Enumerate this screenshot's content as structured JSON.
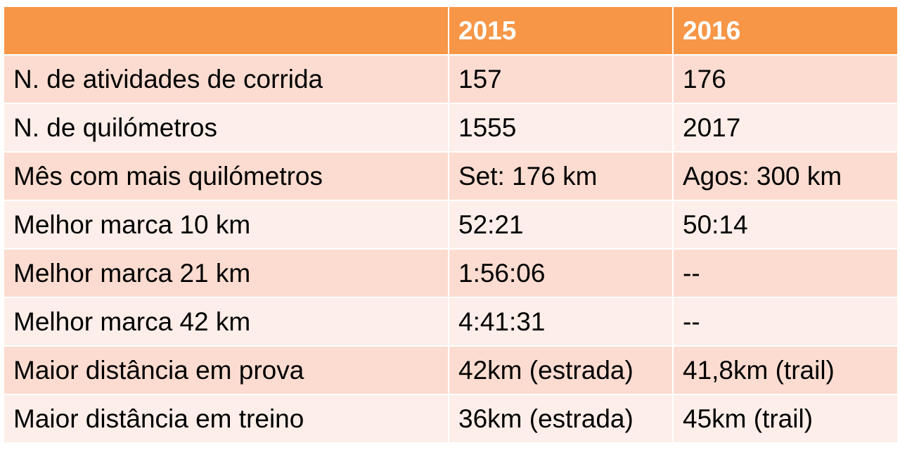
{
  "table": {
    "headers": [
      "",
      "2015",
      "2016"
    ],
    "rows": [
      [
        "N. de atividades de corrida",
        "157",
        "176"
      ],
      [
        "N. de quilómetros",
        "1555",
        "2017"
      ],
      [
        "Mês com mais quilómetros",
        "Set: 176 km",
        "Agos: 300 km"
      ],
      [
        "Melhor marca 10 km",
        "52:21",
        "50:14"
      ],
      [
        "Melhor marca 21 km",
        "1:56:06",
        "--"
      ],
      [
        "Melhor marca 42 km",
        "4:41:31",
        "--"
      ],
      [
        "Maior distância em prova",
        "42km (estrada)",
        "41,8km (trail)"
      ],
      [
        "Maior distância em treino",
        "36km (estrada)",
        "45km (trail)"
      ]
    ]
  },
  "colors": {
    "header": "#f79646",
    "row_odd": "#fcdcd0",
    "row_even": "#fdeee9"
  }
}
